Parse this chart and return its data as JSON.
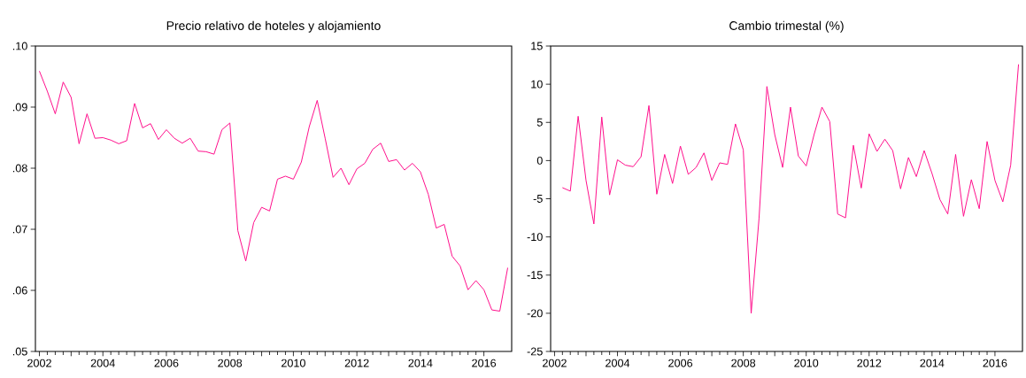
{
  "chart_data": [
    {
      "type": "line",
      "title": "Precio relativo de hoteles y alojamiento",
      "color": "#ff0f8c",
      "x": [
        2002,
        2002.25,
        2002.5,
        2002.75,
        2003,
        2003.25,
        2003.5,
        2003.75,
        2004,
        2004.25,
        2004.5,
        2004.75,
        2005,
        2005.25,
        2005.5,
        2005.75,
        2006,
        2006.25,
        2006.5,
        2006.75,
        2007,
        2007.25,
        2007.5,
        2007.75,
        2008,
        2008.25,
        2008.5,
        2008.75,
        2009,
        2009.25,
        2009.5,
        2009.75,
        2010,
        2010.25,
        2010.5,
        2010.75,
        2011,
        2011.25,
        2011.5,
        2011.75,
        2012,
        2012.25,
        2012.5,
        2012.75,
        2013,
        2013.25,
        2013.5,
        2013.75,
        2014,
        2014.25,
        2014.5,
        2014.75,
        2015,
        2015.25,
        2015.5,
        2015.75,
        2016,
        2016.25,
        2016.5,
        2016.75
      ],
      "values": [
        0.0959,
        0.0926,
        0.0889,
        0.0941,
        0.0916,
        0.084,
        0.0889,
        0.0849,
        0.085,
        0.0846,
        0.084,
        0.0845,
        0.0906,
        0.0866,
        0.0873,
        0.0847,
        0.0863,
        0.0849,
        0.0841,
        0.0849,
        0.0828,
        0.0827,
        0.0823,
        0.0863,
        0.0874,
        0.0698,
        0.0648,
        0.0711,
        0.0736,
        0.073,
        0.0782,
        0.0787,
        0.0782,
        0.081,
        0.0868,
        0.0911,
        0.0849,
        0.0785,
        0.08,
        0.0773,
        0.0799,
        0.0808,
        0.0831,
        0.0841,
        0.0811,
        0.0814,
        0.0797,
        0.0808,
        0.0794,
        0.0757,
        0.0702,
        0.0708,
        0.0656,
        0.064,
        0.0601,
        0.0616,
        0.0601,
        0.0568,
        0.0566,
        0.0637
      ],
      "xlim": [
        2001.875,
        2016.875
      ],
      "xticks": [
        2002,
        {
          "value": 2003,
          "label": null
        },
        2004,
        {
          "value": 2005,
          "label": null
        },
        2006,
        {
          "value": 2007,
          "label": null
        },
        2008,
        {
          "value": 2009,
          "label": null
        },
        2010,
        {
          "value": 2011,
          "label": null
        },
        2012,
        {
          "value": 2013,
          "label": null
        },
        2014,
        {
          "value": 2015,
          "label": null
        },
        2016
      ],
      "ylim": [
        0.05,
        0.1
      ],
      "yticks": [
        {
          "value": 0.05,
          "label": ".05"
        },
        {
          "value": 0.06,
          "label": ".06"
        },
        {
          "value": 0.07,
          "label": ".07"
        },
        {
          "value": 0.08,
          "label": ".08"
        },
        {
          "value": 0.09,
          "label": ".09"
        },
        {
          "value": 0.1,
          "label": ".10"
        }
      ]
    },
    {
      "type": "line",
      "title": "Cambio trimestal (%)",
      "color": "#ff0f8c",
      "x": [
        2002.25,
        2002.5,
        2002.75,
        2003,
        2003.25,
        2003.5,
        2003.75,
        2004,
        2004.25,
        2004.5,
        2004.75,
        2005,
        2005.25,
        2005.5,
        2005.75,
        2006,
        2006.25,
        2006.5,
        2006.75,
        2007,
        2007.25,
        2007.5,
        2007.75,
        2008,
        2008.25,
        2008.5,
        2008.75,
        2009,
        2009.25,
        2009.5,
        2009.75,
        2010,
        2010.25,
        2010.5,
        2010.75,
        2011,
        2011.25,
        2011.5,
        2011.75,
        2012,
        2012.25,
        2012.5,
        2012.75,
        2013,
        2013.25,
        2013.5,
        2013.75,
        2014,
        2014.25,
        2014.5,
        2014.75,
        2015,
        2015.25,
        2015.5,
        2015.75,
        2016,
        2016.25,
        2016.5,
        2016.75
      ],
      "values": [
        -3.55,
        -4.0,
        5.8,
        -2.6,
        -8.3,
        5.7,
        -4.5,
        0.1,
        -0.6,
        -0.8,
        0.5,
        7.2,
        -4.4,
        0.8,
        -3.0,
        1.9,
        -1.8,
        -0.9,
        1.0,
        -2.6,
        -0.3,
        -0.5,
        4.8,
        1.4,
        -20.0,
        -7.6,
        9.7,
        3.4,
        -0.9,
        7.0,
        0.6,
        -0.7,
        3.4,
        7.0,
        5.1,
        -7.0,
        -7.5,
        2.0,
        -3.6,
        3.5,
        1.2,
        2.8,
        1.3,
        -3.7,
        0.4,
        -2.1,
        1.3,
        -1.7,
        -5.1,
        -7.0,
        0.8,
        -7.3,
        -2.5,
        -6.3,
        2.5,
        -2.6,
        -5.4,
        -0.6,
        12.6
      ],
      "xlim": [
        2001.875,
        2016.875
      ],
      "xticks": [
        2002,
        {
          "value": 2003,
          "label": null
        },
        2004,
        {
          "value": 2005,
          "label": null
        },
        2006,
        {
          "value": 2007,
          "label": null
        },
        2008,
        {
          "value": 2009,
          "label": null
        },
        2010,
        {
          "value": 2011,
          "label": null
        },
        2012,
        {
          "value": 2013,
          "label": null
        },
        2014,
        {
          "value": 2015,
          "label": null
        },
        2016
      ],
      "ylim": [
        -25,
        15
      ],
      "yticks": [
        -25,
        -20,
        -15,
        -10,
        -5,
        0,
        5,
        10,
        15
      ]
    }
  ]
}
